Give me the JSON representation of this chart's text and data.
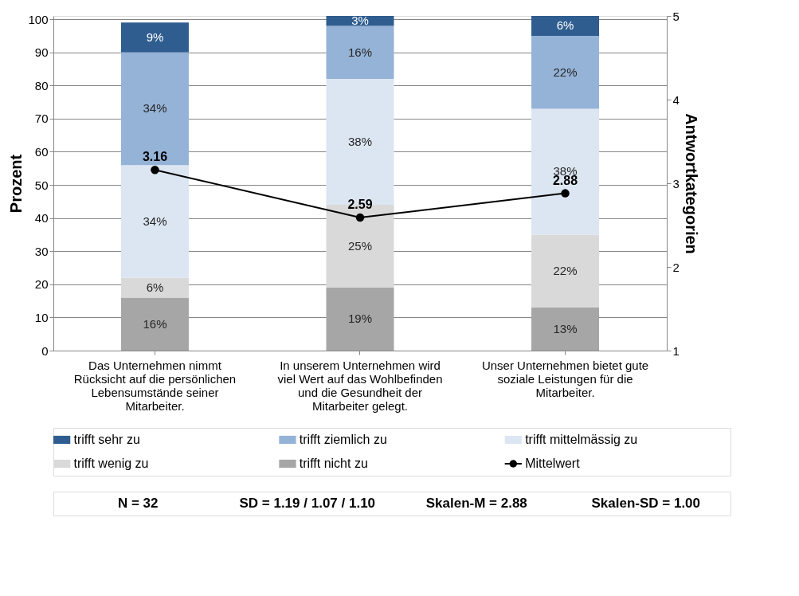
{
  "chart_data": {
    "type": "bar",
    "stacked": true,
    "categories": [
      "Das Unternehmen nimmt Rücksicht auf die persönlichen Lebensumstände seiner Mitarbeiter.",
      "In unserem Unternehmen wird viel Wert auf das Wohlbefinden und die Gesundheit der Mitarbeiter gelegt.",
      "Unser Unternehmen bietet gute soziale Leistungen für die Mitarbeiter."
    ],
    "series": [
      {
        "name": "trifft nicht zu",
        "color": "#a6a6a6",
        "values": [
          16,
          19,
          13
        ],
        "value_labels": [
          "16%",
          "19%",
          "13%"
        ]
      },
      {
        "name": "trifft wenig zu",
        "color": "#d9d9d9",
        "values": [
          6,
          25,
          22
        ],
        "value_labels": [
          "6%",
          "25%",
          "22%"
        ]
      },
      {
        "name": "trifft mittelmässig zu",
        "color": "#dce6f2",
        "values": [
          34,
          38,
          38
        ],
        "value_labels": [
          "34%",
          "38%",
          "38%"
        ]
      },
      {
        "name": "trifft ziemlich zu",
        "color": "#95b3d7",
        "values": [
          34,
          16,
          22
        ],
        "value_labels": [
          "34%",
          "16%",
          "22%"
        ]
      },
      {
        "name": "trifft sehr zu",
        "color": "#2f5d8f",
        "values": [
          9,
          3,
          6
        ],
        "value_labels": [
          "9%",
          "3%",
          "6%"
        ]
      },
      {
        "name": "Mittelwert",
        "type": "line",
        "axis": "y2",
        "color": "#000000",
        "marker": "circle",
        "values": [
          3.16,
          2.59,
          2.88
        ],
        "value_labels": [
          "3.16",
          "2.59",
          "2.88"
        ]
      }
    ],
    "ylabel": "Prozent",
    "y2label": "Antwortkategorien",
    "ylim": [
      0,
      101
    ],
    "yticks": [
      0,
      10,
      20,
      30,
      40,
      50,
      60,
      70,
      80,
      90,
      100
    ],
    "y2lim": [
      1,
      5
    ],
    "y2ticks": [
      1,
      2,
      3,
      4,
      5
    ],
    "grid": "y",
    "legend": "bottom",
    "annotations": [
      "N = 32",
      "SD = 1.19 / 1.07 / 1.10",
      "Skalen-M = 2.88",
      "Skalen-SD = 1.00"
    ]
  }
}
